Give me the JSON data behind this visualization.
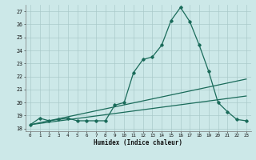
{
  "title": "",
  "xlabel": "Humidex (Indice chaleur)",
  "xlim": [
    -0.5,
    23.5
  ],
  "ylim": [
    17.8,
    27.5
  ],
  "xticks": [
    0,
    1,
    2,
    3,
    4,
    5,
    6,
    7,
    8,
    9,
    10,
    11,
    12,
    13,
    14,
    15,
    16,
    17,
    18,
    19,
    20,
    21,
    22,
    23
  ],
  "yticks": [
    18,
    19,
    20,
    21,
    22,
    23,
    24,
    25,
    26,
    27
  ],
  "bg_color": "#cce8e8",
  "line_color": "#1a6b5a",
  "grid_color": "#aacaca",
  "line1_x": [
    0,
    1,
    2,
    3,
    4,
    5,
    6,
    7,
    8,
    9,
    10,
    11,
    12,
    13,
    14,
    15,
    16,
    17,
    18,
    19,
    20,
    21,
    22,
    23
  ],
  "line1_y": [
    18.3,
    18.8,
    18.6,
    18.7,
    18.8,
    18.6,
    18.6,
    18.6,
    18.6,
    19.8,
    20.0,
    22.3,
    23.3,
    23.5,
    24.4,
    26.3,
    27.3,
    26.2,
    24.4,
    22.4,
    20.0,
    19.3,
    18.7,
    18.6
  ],
  "line2_x": [
    0,
    23
  ],
  "line2_y": [
    18.3,
    21.8
  ],
  "line3_x": [
    0,
    23
  ],
  "line3_y": [
    18.3,
    20.5
  ],
  "marker": "D",
  "markersize": 1.8,
  "linewidth": 0.9
}
